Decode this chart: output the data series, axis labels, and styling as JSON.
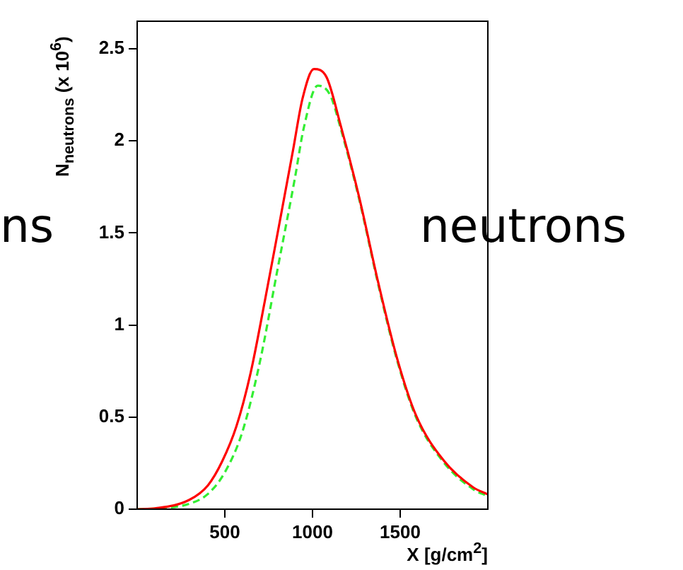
{
  "chart_data": {
    "type": "line",
    "xlabel": "X [g/cm$^{2}$]",
    "ylabel": "N$_{neutrons}$ (x 10$^{6}$)",
    "annotations": [
      "ns",
      "neutrons"
    ],
    "xlim": [
      0,
      2000
    ],
    "ylim": [
      0,
      2.65
    ],
    "xticks": [
      500,
      1000,
      1500
    ],
    "yticks": [
      0,
      0.5,
      1,
      1.5,
      2,
      2.5
    ],
    "grid": false,
    "legend": false,
    "marker": "none",
    "series": [
      {
        "color": "#ff0000",
        "line_style": "solid",
        "x": [
          0,
          108,
          296,
          404,
          485,
          566,
          647,
          728,
          809,
          889,
          943,
          1008,
          1078,
          1159,
          1267,
          1375,
          1482,
          1590,
          1752,
          1914,
          2000
        ],
        "values": [
          0.0,
          0.005,
          0.05,
          0.13,
          0.26,
          0.45,
          0.74,
          1.13,
          1.54,
          1.95,
          2.23,
          2.39,
          2.35,
          2.09,
          1.69,
          1.23,
          0.82,
          0.51,
          0.26,
          0.12,
          0.08
        ]
      },
      {
        "color": "#33ee33",
        "line_style": "dashed",
        "x": [
          0,
          100,
          300,
          400,
          500,
          600,
          700,
          800,
          900,
          950,
          1030,
          1100,
          1160,
          1267,
          1375,
          1482,
          1590,
          1752,
          1914,
          2000
        ],
        "values": [
          0.0,
          0.003,
          0.03,
          0.08,
          0.2,
          0.42,
          0.8,
          1.3,
          1.8,
          2.07,
          2.3,
          2.25,
          2.07,
          1.68,
          1.22,
          0.81,
          0.5,
          0.25,
          0.11,
          0.07
        ]
      }
    ]
  }
}
